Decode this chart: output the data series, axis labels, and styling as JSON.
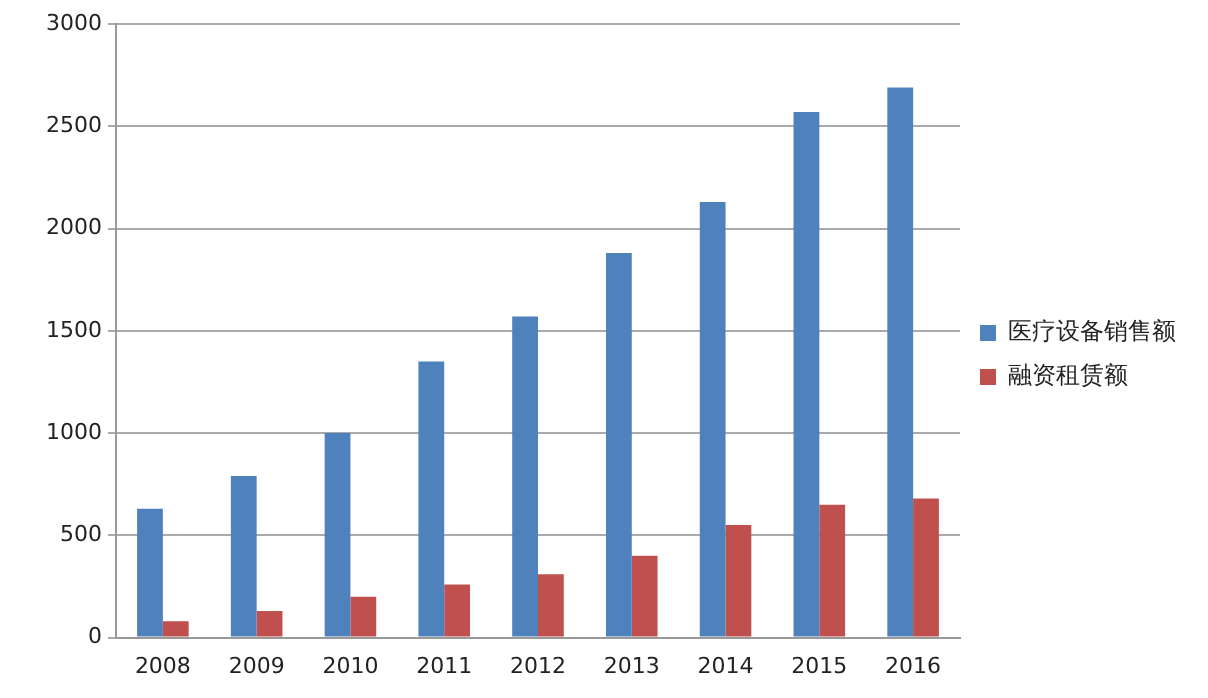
{
  "chart_data": {
    "type": "bar",
    "categories": [
      "2008",
      "2009",
      "2010",
      "2011",
      "2012",
      "2013",
      "2014",
      "2015",
      "2016"
    ],
    "series": [
      {
        "name": "医疗设备销售额",
        "color": "#4f81bd",
        "values": [
          630,
          790,
          1000,
          1350,
          1570,
          1880,
          2130,
          2570,
          2690
        ]
      },
      {
        "name": "融资租赁额",
        "color": "#c0504d",
        "values": [
          80,
          130,
          200,
          260,
          310,
          400,
          550,
          650,
          680
        ]
      }
    ],
    "ylim": [
      0,
      3000
    ],
    "yticks": [
      0,
      500,
      1000,
      1500,
      2000,
      2500,
      3000
    ],
    "grid": "y",
    "legend": "right"
  }
}
